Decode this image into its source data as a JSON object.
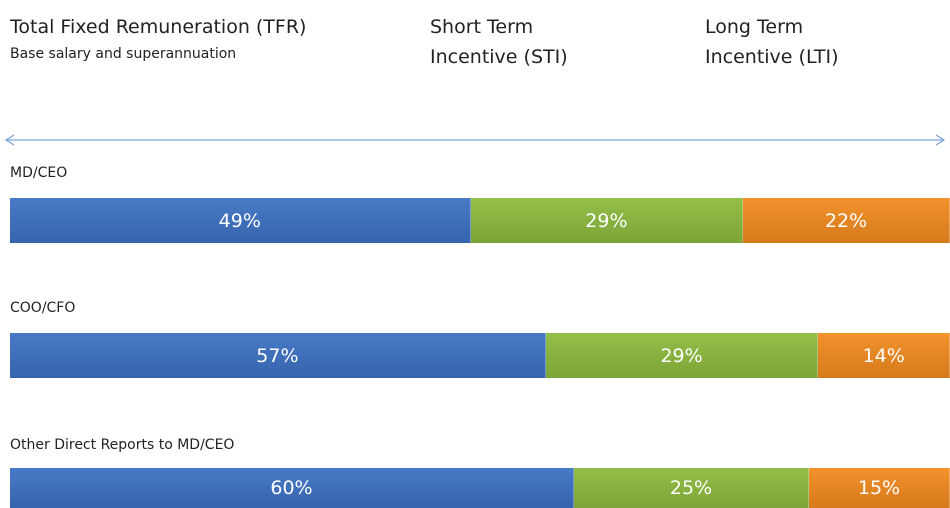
{
  "chart_data": {
    "type": "stacked-bar",
    "subtitle": "Base salary and superannuation",
    "categories": [
      "MD/CEO",
      "COO/CFO",
      "Other Direct Reports to MD/CEO"
    ],
    "series": [
      {
        "name": "Total Fixed Remuneration (TFR)",
        "color": "#3d72c4",
        "values": [
          49,
          57,
          60
        ],
        "value_labels": [
          "49%",
          "57%",
          "60%"
        ]
      },
      {
        "name": "Short Term Incentive (STI)",
        "color": "#8dbb3e",
        "values": [
          29,
          29,
          25
        ],
        "value_labels": [
          "29%",
          "29%",
          "25%"
        ]
      },
      {
        "name": "Long Term Incentive (LTI)",
        "color": "#f38b1f",
        "values": [
          22,
          14,
          15
        ],
        "value_labels": [
          "22%",
          "14%",
          "15%"
        ]
      }
    ]
  }
}
